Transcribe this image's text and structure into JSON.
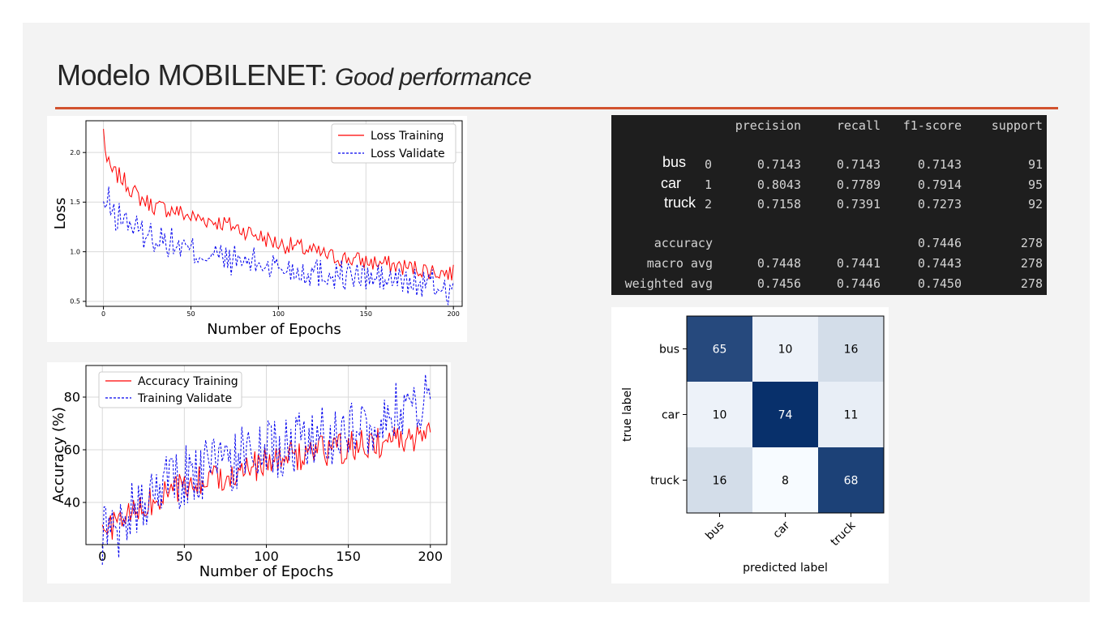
{
  "slide": {
    "title_main": "Modelo MOBILENET: ",
    "title_sub": "Good performance",
    "accent_color": "#d2522e"
  },
  "report": {
    "headers": [
      "precision",
      "recall",
      "f1-score",
      "support"
    ],
    "rows": [
      {
        "label": "bus",
        "index": "0",
        "precision": "0.7143",
        "recall": "0.7143",
        "f1": "0.7143",
        "support": "91"
      },
      {
        "label": "car",
        "index": "1",
        "precision": "0.8043",
        "recall": "0.7789",
        "f1": "0.7914",
        "support": "95"
      },
      {
        "label": "truck",
        "index": "2",
        "precision": "0.7158",
        "recall": "0.7391",
        "f1": "0.7273",
        "support": "92"
      }
    ],
    "summary": [
      {
        "label": "accuracy",
        "precision": "",
        "recall": "",
        "f1": "0.7446",
        "support": "278"
      },
      {
        "label": "macro avg",
        "precision": "0.7448",
        "recall": "0.7441",
        "f1": "0.7443",
        "support": "278"
      },
      {
        "label": "weighted avg",
        "precision": "0.7456",
        "recall": "0.7446",
        "f1": "0.7450",
        "support": "278"
      }
    ]
  },
  "chart_data": [
    {
      "type": "line",
      "xlabel": "Number of Epochs",
      "ylabel": "Loss",
      "xlim": [
        -10,
        205
      ],
      "ylim": [
        0.45,
        2.32
      ],
      "xticks": [
        0,
        50,
        100,
        150,
        200
      ],
      "yticks": [
        0.5,
        1.0,
        1.5,
        2.0
      ],
      "grid": true,
      "legend": "top-right",
      "series": [
        {
          "name": "Loss Training",
          "color": "#ff0000",
          "style": "solid",
          "anchors": [
            [
              0,
              2.22
            ],
            [
              2,
              1.9
            ],
            [
              5,
              1.8
            ],
            [
              10,
              1.75
            ],
            [
              15,
              1.65
            ],
            [
              20,
              1.55
            ],
            [
              25,
              1.5
            ],
            [
              30,
              1.45
            ],
            [
              40,
              1.42
            ],
            [
              50,
              1.35
            ],
            [
              60,
              1.32
            ],
            [
              70,
              1.28
            ],
            [
              80,
              1.22
            ],
            [
              90,
              1.15
            ],
            [
              100,
              1.08
            ],
            [
              110,
              1.05
            ],
            [
              120,
              1.0
            ],
            [
              130,
              0.95
            ],
            [
              140,
              0.93
            ],
            [
              150,
              0.9
            ],
            [
              160,
              0.88
            ],
            [
              170,
              0.85
            ],
            [
              180,
              0.83
            ],
            [
              190,
              0.8
            ],
            [
              200,
              0.78
            ]
          ]
        },
        {
          "name": "Loss Validate",
          "color": "#0000ee",
          "style": "dashed",
          "anchors": [
            [
              0,
              1.45
            ],
            [
              3,
              1.5
            ],
            [
              6,
              1.35
            ],
            [
              10,
              1.35
            ],
            [
              15,
              1.3
            ],
            [
              20,
              1.2
            ],
            [
              30,
              1.15
            ],
            [
              40,
              1.08
            ],
            [
              50,
              1.0
            ],
            [
              60,
              0.98
            ],
            [
              70,
              0.92
            ],
            [
              80,
              0.9
            ],
            [
              90,
              0.88
            ],
            [
              100,
              0.85
            ],
            [
              110,
              0.82
            ],
            [
              120,
              0.8
            ],
            [
              130,
              0.78
            ],
            [
              140,
              0.76
            ],
            [
              150,
              0.74
            ],
            [
              160,
              0.72
            ],
            [
              170,
              0.7
            ],
            [
              180,
              0.68
            ],
            [
              190,
              0.66
            ],
            [
              200,
              0.6
            ]
          ]
        }
      ]
    },
    {
      "type": "line",
      "xlabel": "Number of Epochs",
      "ylabel": "Accuracy (%)",
      "xlim": [
        -10,
        210
      ],
      "ylim": [
        24,
        92
      ],
      "xticks": [
        0,
        50,
        100,
        150,
        200
      ],
      "yticks": [
        40,
        60,
        80
      ],
      "grid": true,
      "legend": "top-left",
      "series": [
        {
          "name": "Accuracy Training",
          "color": "#ff0000",
          "style": "solid",
          "anchors": [
            [
              0,
              28
            ],
            [
              10,
              33
            ],
            [
              20,
              36
            ],
            [
              30,
              40
            ],
            [
              40,
              43
            ],
            [
              50,
              46
            ],
            [
              60,
              48
            ],
            [
              70,
              50
            ],
            [
              80,
              52
            ],
            [
              90,
              53
            ],
            [
              100,
              55
            ],
            [
              110,
              57
            ],
            [
              120,
              58
            ],
            [
              130,
              59
            ],
            [
              140,
              60
            ],
            [
              150,
              61
            ],
            [
              160,
              62
            ],
            [
              170,
              63
            ],
            [
              180,
              64
            ],
            [
              190,
              65
            ],
            [
              200,
              66
            ]
          ]
        },
        {
          "name": "Training Validate",
          "color": "#0000ee",
          "style": "dashed",
          "anchors": [
            [
              0,
              28
            ],
            [
              10,
              31
            ],
            [
              20,
              37
            ],
            [
              30,
              44
            ],
            [
              40,
              47
            ],
            [
              50,
              50
            ],
            [
              60,
              52
            ],
            [
              70,
              54
            ],
            [
              80,
              56
            ],
            [
              90,
              58
            ],
            [
              100,
              59
            ],
            [
              110,
              62
            ],
            [
              120,
              63
            ],
            [
              130,
              65
            ],
            [
              140,
              66
            ],
            [
              150,
              68
            ],
            [
              160,
              70
            ],
            [
              170,
              72
            ],
            [
              180,
              74
            ],
            [
              190,
              76
            ],
            [
              200,
              80
            ]
          ]
        }
      ]
    },
    {
      "type": "heatmap",
      "xlabel": "predicted label",
      "ylabel": "true label",
      "x_categories": [
        "bus",
        "car",
        "truck"
      ],
      "y_categories": [
        "bus",
        "car",
        "truck"
      ],
      "values": [
        [
          65,
          10,
          16
        ],
        [
          10,
          74,
          11
        ],
        [
          16,
          8,
          68
        ]
      ],
      "colormap": "Blues"
    }
  ]
}
